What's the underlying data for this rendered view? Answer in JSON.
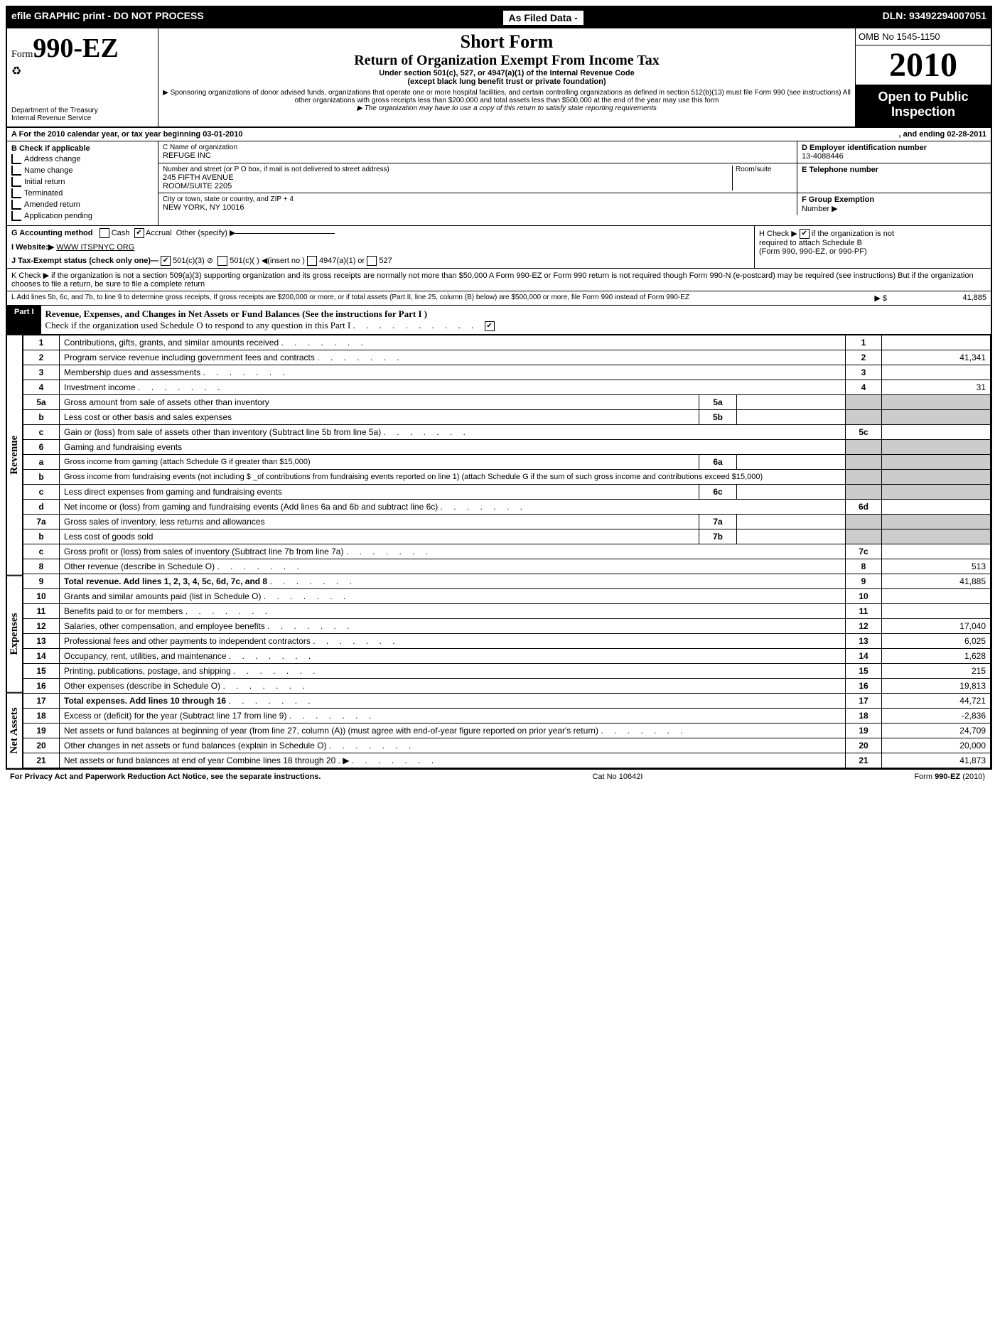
{
  "topbar": {
    "left": "efile GRAPHIC print - DO NOT PROCESS",
    "mid": "As Filed Data -",
    "right": "DLN: 93492294007051"
  },
  "header": {
    "form_prefix": "Form",
    "form_number": "990-EZ",
    "dept1": "Department of the Treasury",
    "dept2": "Internal Revenue Service",
    "title1": "Short Form",
    "title2": "Return of Organization Exempt From Income Tax",
    "subtitle1": "Under section 501(c), 527, or 4947(a)(1) of the Internal Revenue Code",
    "subtitle2": "(except black lung benefit trust or private foundation)",
    "hint1": "▶ Sponsoring organizations of donor advised funds, organizations that operate one or more hospital facilities, and certain controlling organizations as defined in section 512(b)(13) must file Form 990 (see instructions) All other organizations with gross receipts less than $200,000 and total assets less than $500,000 at the end of the year may use this form",
    "hint2": "▶ The organization may have to use a copy of this return to satisfy state reporting requirements",
    "omb": "OMB No 1545-1150",
    "year": "2010",
    "open1": "Open to Public",
    "open2": "Inspection"
  },
  "lineA": {
    "label": "A  For the 2010 calendar year, or tax year beginning 03-01-2010",
    "ending": ", and ending 02-28-2011"
  },
  "colB": {
    "title": "B  Check if applicable",
    "items": [
      "Address change",
      "Name change",
      "Initial return",
      "Terminated",
      "Amended return",
      "Application pending"
    ]
  },
  "colC": {
    "name_label": "C Name of organization",
    "name": "REFUGE INC",
    "street_label": "Number and street (or P O box, if mail is not delivered to street address)",
    "street1": "245 FIFTH AVENUE",
    "street2": "ROOM/SUITE 2205",
    "room_label": "Room/suite",
    "city_label": "City or town, state or country, and ZIP + 4",
    "city": "NEW YORK, NY  10016",
    "d_label": "D Employer identification number",
    "d_val": "13-4088446",
    "e_label": "E Telephone number",
    "f_label": "F Group Exemption",
    "f_label2": "Number ▶"
  },
  "lineG": {
    "label": "G Accounting method",
    "cash": "Cash",
    "accrual": "Accrual",
    "other": "Other (specify) ▶"
  },
  "lineI": {
    "label": "I Website:▶",
    "val": "WWW ITSPNYC ORG"
  },
  "lineH": {
    "text1": "H  Check ▶",
    "text2": "if the organization is not",
    "text3": "required to attach Schedule B",
    "text4": "(Form 990, 990-EZ, or 990-PF)"
  },
  "lineJ": {
    "label": "J Tax-Exempt status (check only one)—",
    "o1": "501(c)(3)",
    "o2": "501(c)(  ) ◀(insert no )",
    "o3": "4947(a)(1) or",
    "o4": "527"
  },
  "lineK": "K Check ▶   if the organization is not a section 509(a)(3) supporting organization and its gross receipts are normally not more than $50,000  A Form 990-EZ or Form 990 return is not required though Form 990-N (e-postcard) may be required (see instructions) But if the organization chooses to file a return, be sure to file a complete return",
  "lineL": {
    "text": "L Add lines 5b, 6c, and 7b, to line 9 to determine gross receipts, If gross receipts are $200,000 or more, or if total assets (Part II, line 25, column (B) below) are $500,000 or more, file Form 990 instead of Form 990-EZ",
    "arrow": "▶ $",
    "val": "41,885"
  },
  "part1": {
    "label": "Part I",
    "title": "Revenue, Expenses, and Changes in Net Assets or Fund Balances (See the instructions for Part I )",
    "sub": "Check if the organization used Schedule O to respond to any question in this Part I"
  },
  "sections": {
    "revenue": "Revenue",
    "expenses": "Expenses",
    "netassets": "Net Assets"
  },
  "lines": [
    {
      "n": "1",
      "d": "Contributions, gifts, grants, and similar amounts received",
      "r": "1",
      "v": ""
    },
    {
      "n": "2",
      "d": "Program service revenue including government fees and contracts",
      "r": "2",
      "v": "41,341"
    },
    {
      "n": "3",
      "d": "Membership dues and assessments",
      "r": "3",
      "v": ""
    },
    {
      "n": "4",
      "d": "Investment income",
      "r": "4",
      "v": "31"
    },
    {
      "n": "5a",
      "d": "Gross amount from sale of assets other than inventory",
      "sn": "5a",
      "sv": ""
    },
    {
      "n": "b",
      "d": "Less cost or other basis and sales expenses",
      "sn": "5b",
      "sv": ""
    },
    {
      "n": "c",
      "d": "Gain or (loss) from sale of assets other than inventory (Subtract line 5b from line 5a)",
      "r": "5c",
      "v": ""
    },
    {
      "n": "6",
      "d": "Gaming and fundraising events"
    },
    {
      "n": "a",
      "d": "Gross income from gaming (attach Schedule G if greater than $15,000)",
      "sn": "6a",
      "sv": "",
      "small": true
    },
    {
      "n": "b",
      "d": "Gross income from fundraising events (not including $ _of contributions from fundraising events reported on line 1) (attach Schedule G if the sum of such gross income and contributions exceed $15,000)",
      "small": true
    },
    {
      "n": "c",
      "d": "Less direct expenses from gaming and fundraising events",
      "sn": "6c",
      "sv": ""
    },
    {
      "n": "d",
      "d": "Net income or (loss) from gaming and fundraising events (Add lines 6a and 6b and subtract line 6c)",
      "r": "6d",
      "v": ""
    },
    {
      "n": "7a",
      "d": "Gross sales of inventory, less returns and allowances",
      "sn": "7a",
      "sv": ""
    },
    {
      "n": "b",
      "d": "Less cost of goods sold",
      "sn": "7b",
      "sv": ""
    },
    {
      "n": "c",
      "d": "Gross profit or (loss) from sales of inventory (Subtract line 7b from line 7a)",
      "r": "7c",
      "v": ""
    },
    {
      "n": "8",
      "d": "Other revenue (describe in Schedule O)",
      "r": "8",
      "v": "513"
    },
    {
      "n": "9",
      "d": "Total revenue. Add lines 1, 2, 3, 4, 5c, 6d, 7c, and 8",
      "r": "9",
      "v": "41,885",
      "bold": true
    },
    {
      "n": "10",
      "d": "Grants and similar amounts paid (list in Schedule O)",
      "r": "10",
      "v": ""
    },
    {
      "n": "11",
      "d": "Benefits paid to or for members",
      "r": "11",
      "v": ""
    },
    {
      "n": "12",
      "d": "Salaries, other compensation, and employee benefits",
      "r": "12",
      "v": "17,040"
    },
    {
      "n": "13",
      "d": "Professional fees and other payments to independent contractors",
      "r": "13",
      "v": "6,025"
    },
    {
      "n": "14",
      "d": "Occupancy, rent, utilities, and maintenance",
      "r": "14",
      "v": "1,628"
    },
    {
      "n": "15",
      "d": "Printing, publications, postage, and shipping",
      "r": "15",
      "v": "215"
    },
    {
      "n": "16",
      "d": "Other expenses (describe in Schedule O)",
      "r": "16",
      "v": "19,813"
    },
    {
      "n": "17",
      "d": "Total expenses. Add lines 10 through 16",
      "r": "17",
      "v": "44,721",
      "bold": true
    },
    {
      "n": "18",
      "d": "Excess or (deficit) for the year (Subtract line 17 from line 9)",
      "r": "18",
      "v": "-2,836"
    },
    {
      "n": "19",
      "d": "Net assets or fund balances at beginning of year (from line 27, column (A)) (must agree with end-of-year figure reported on prior year's return)",
      "r": "19",
      "v": "24,709"
    },
    {
      "n": "20",
      "d": "Other changes in net assets or fund balances (explain in Schedule O)",
      "r": "20",
      "v": "20,000"
    },
    {
      "n": "21",
      "d": "Net assets or fund balances at end of year Combine lines 18 through 20      .  ▶",
      "r": "21",
      "v": "41,873"
    }
  ],
  "footer": {
    "left": "For Privacy Act and Paperwork Reduction Act Notice, see the separate instructions.",
    "mid": "Cat No 10642I",
    "right": "Form 990-EZ (2010)"
  }
}
